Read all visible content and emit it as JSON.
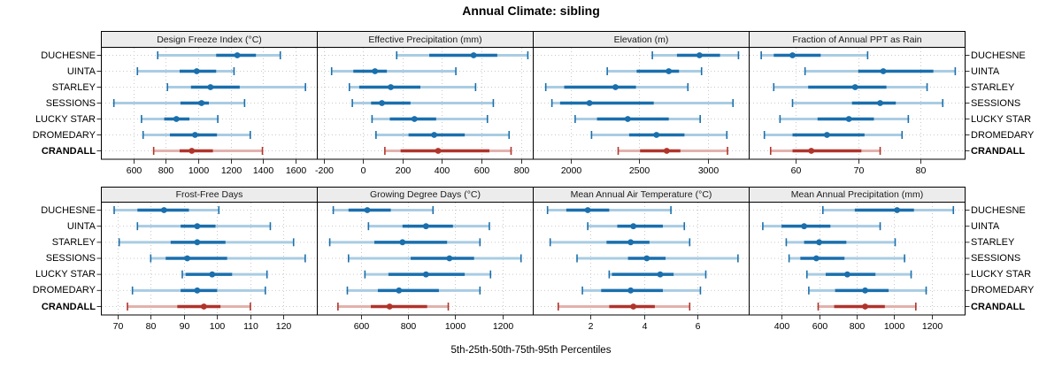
{
  "colors": {
    "series_blue": "#1a6fad",
    "series_blue_light": "#a9cce3",
    "highlight_red": "#b0342b",
    "highlight_red_light": "#e2b2ad",
    "grid": "#c9c9c9",
    "tick": "#333333",
    "strip_bg": "#ececec",
    "border": "#000000"
  },
  "chart_data": {
    "type": "trellis-percentile-intervals",
    "title": "Annual Climate: sibling",
    "footer": "5th-25th-50th-75th-95th Percentiles",
    "percentiles": [
      5,
      25,
      50,
      75,
      95
    ],
    "sites": [
      "DUCHESNE",
      "UINTA",
      "STARLEY",
      "SESSIONS",
      "LUCKY STAR",
      "DROMEDARY",
      "CRANDALL"
    ],
    "highlight_site": "CRANDALL",
    "legend_position": "none",
    "grid": "dotted",
    "panels": [
      {
        "title": "Design Freeze Index (°C)",
        "xlim": [
          400,
          1730
        ],
        "ticks": [
          600,
          800,
          1000,
          1200,
          1400,
          1600
        ],
        "values": [
          [
            750,
            1110,
            1240,
            1355,
            1505
          ],
          [
            625,
            885,
            990,
            1110,
            1220
          ],
          [
            810,
            955,
            1075,
            1255,
            1660
          ],
          [
            480,
            890,
            1020,
            1065,
            1285
          ],
          [
            650,
            790,
            865,
            945,
            1120
          ],
          [
            660,
            825,
            980,
            1115,
            1320
          ],
          [
            725,
            885,
            960,
            1090,
            1395
          ]
        ]
      },
      {
        "title": "Effective Precipitation (mm)",
        "xlim": [
          -235,
          860
        ],
        "ticks": [
          -200,
          0,
          200,
          400,
          600,
          800
        ],
        "values": [
          [
            170,
            335,
            560,
            680,
            835
          ],
          [
            -160,
            -50,
            60,
            120,
            470
          ],
          [
            -70,
            -20,
            140,
            290,
            570
          ],
          [
            -55,
            40,
            95,
            240,
            660
          ],
          [
            45,
            135,
            260,
            370,
            630
          ],
          [
            65,
            230,
            360,
            515,
            740
          ],
          [
            110,
            190,
            380,
            640,
            750
          ]
        ]
      },
      {
        "title": "Elevation (m)",
        "xlim": [
          1720,
          3300
        ],
        "ticks": [
          2000,
          2500,
          3000
        ],
        "values": [
          [
            2595,
            2775,
            2940,
            3090,
            3225
          ],
          [
            2265,
            2480,
            2715,
            2790,
            2955
          ],
          [
            1815,
            1950,
            2325,
            2475,
            2855
          ],
          [
            1860,
            1920,
            2135,
            2605,
            3185
          ],
          [
            2030,
            2190,
            2415,
            2715,
            2945
          ],
          [
            2150,
            2425,
            2625,
            2830,
            3140
          ],
          [
            2345,
            2505,
            2700,
            2800,
            3145
          ]
        ]
      },
      {
        "title": "Fraction of Annual PPT as Rain",
        "xlim": [
          52.5,
          87
        ],
        "ticks": [
          60,
          70,
          80
        ],
        "values": [
          [
            54.5,
            56.5,
            59.5,
            64,
            71.5
          ],
          [
            61.5,
            70,
            74,
            82,
            85.5
          ],
          [
            56.5,
            62,
            69.5,
            74.5,
            81
          ],
          [
            59.5,
            69,
            73.5,
            76,
            83.5
          ],
          [
            57.5,
            63.5,
            68.5,
            72.5,
            78
          ],
          [
            55,
            59.5,
            65,
            71,
            77
          ],
          [
            56,
            59.5,
            62.5,
            70.5,
            73.5
          ]
        ]
      },
      {
        "title": "Frost-Free Days",
        "xlim": [
          65,
          130
        ],
        "ticks": [
          70,
          80,
          90,
          100,
          110,
          120
        ],
        "values": [
          [
            69,
            76,
            84,
            91.5,
            100.5
          ],
          [
            76,
            89,
            94,
            99.5,
            116
          ],
          [
            70.5,
            86,
            94,
            102.5,
            123
          ],
          [
            80,
            84.5,
            91,
            103,
            126.5
          ],
          [
            89.5,
            90.5,
            98.5,
            104.5,
            115
          ],
          [
            74.5,
            89,
            94,
            100,
            114.5
          ],
          [
            73,
            88,
            96,
            101,
            110
          ]
        ]
      },
      {
        "title": "Growing Degree Days (°C)",
        "xlim": [
          410,
          1330
        ],
        "ticks": [
          600,
          800,
          1000,
          1200
        ],
        "values": [
          [
            480,
            545,
            625,
            725,
            905
          ],
          [
            630,
            775,
            875,
            990,
            1145
          ],
          [
            465,
            655,
            775,
            965,
            1105
          ],
          [
            545,
            810,
            975,
            1080,
            1280
          ],
          [
            615,
            715,
            875,
            1040,
            1150
          ],
          [
            540,
            670,
            760,
            930,
            1105
          ],
          [
            500,
            640,
            720,
            880,
            970
          ]
        ]
      },
      {
        "title": "Mean Annual Air Temperature (°C)",
        "xlim": [
          -0.15,
          7.9
        ],
        "ticks": [
          2,
          4,
          6
        ],
        "values": [
          [
            0.4,
            1.1,
            1.9,
            2.7,
            5.0
          ],
          [
            1.9,
            3.0,
            3.6,
            4.7,
            5.5
          ],
          [
            0.5,
            2.6,
            3.5,
            4.2,
            5.7
          ],
          [
            1.5,
            3.4,
            4.1,
            4.8,
            7.5
          ],
          [
            2.7,
            2.8,
            4.6,
            5.1,
            6.3
          ],
          [
            1.7,
            2.4,
            3.5,
            4.7,
            6.1
          ],
          [
            0.8,
            2.7,
            3.6,
            4.4,
            5.7
          ]
        ]
      },
      {
        "title": "Mean Annual Precipitation (mm)",
        "xlim": [
          225,
          1375
        ],
        "ticks": [
          400,
          600,
          800,
          1000,
          1200
        ],
        "values": [
          [
            620,
            790,
            1015,
            1105,
            1315
          ],
          [
            300,
            400,
            520,
            660,
            925
          ],
          [
            425,
            520,
            600,
            745,
            1005
          ],
          [
            440,
            500,
            585,
            735,
            1055
          ],
          [
            535,
            635,
            750,
            900,
            1090
          ],
          [
            545,
            685,
            845,
            970,
            1170
          ],
          [
            595,
            680,
            845,
            950,
            1115
          ]
        ]
      }
    ]
  }
}
